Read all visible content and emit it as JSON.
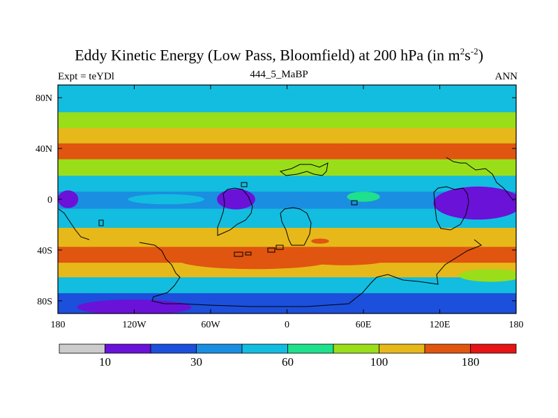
{
  "header": {
    "title_main": "Eddy Kinetic Energy (Low Pass, Bloomfield) at 200 hPa (in m",
    "title_sup1": "2",
    "title_mid": "s",
    "title_sup2": "-2",
    "title_end": ")",
    "expt_label": "Expt = teYDl",
    "run_label": "444_5_MaBP",
    "season_label": "ANN"
  },
  "chart_data": {
    "type": "contour-map",
    "title": "Eddy Kinetic Energy (Low Pass, Bloomfield) at 200 hPa (in m2s-2)",
    "subtitle": "444_5_MaBP",
    "xlabel": "",
    "ylabel": "",
    "xlim": [
      -180,
      180
    ],
    "ylim": [
      -90,
      90
    ],
    "x_ticks": [
      {
        "value": -180,
        "label": "180"
      },
      {
        "value": -120,
        "label": "120W"
      },
      {
        "value": -60,
        "label": "60W"
      },
      {
        "value": 0,
        "label": "0"
      },
      {
        "value": 60,
        "label": "60E"
      },
      {
        "value": 120,
        "label": "120E"
      },
      {
        "value": 180,
        "label": "180"
      }
    ],
    "y_ticks": [
      {
        "value": 80,
        "label": "80N"
      },
      {
        "value": 40,
        "label": "40N"
      },
      {
        "value": 0,
        "label": "0"
      },
      {
        "value": -40,
        "label": "40S"
      },
      {
        "value": -80,
        "label": "80S"
      }
    ],
    "colorbar": {
      "levels": [
        10,
        20,
        30,
        45,
        60,
        80,
        100,
        140,
        180
      ],
      "colors": [
        "#cccccc",
        "#6a12d8",
        "#1c4fdb",
        "#1a8ee0",
        "#12bde0",
        "#1fe08c",
        "#9ade1a",
        "#e6b81a",
        "#e05510",
        "#e61414"
      ],
      "labels": [
        {
          "index": 1,
          "text": "10"
        },
        {
          "index": 3,
          "text": "30"
        },
        {
          "index": 5,
          "text": "60"
        },
        {
          "index": 7,
          "text": "100"
        },
        {
          "index": 9,
          "text": "180"
        }
      ]
    },
    "zonal_mean_profile": [
      {
        "lat": 90,
        "value": 45
      },
      {
        "lat": 75,
        "value": 50
      },
      {
        "lat": 62,
        "value": 80
      },
      {
        "lat": 50,
        "value": 100
      },
      {
        "lat": 38,
        "value": 140
      },
      {
        "lat": 25,
        "value": 80
      },
      {
        "lat": 12,
        "value": 45
      },
      {
        "lat": 0,
        "value": 30
      },
      {
        "lat": -15,
        "value": 50
      },
      {
        "lat": -30,
        "value": 100
      },
      {
        "lat": -45,
        "value": 160
      },
      {
        "lat": -55,
        "value": 110
      },
      {
        "lat": -68,
        "value": 50
      },
      {
        "lat": -80,
        "value": 22
      }
    ],
    "regions": [
      {
        "level_index": 0,
        "lon": 145,
        "lat": -3,
        "rx": 3,
        "ry": 1.5
      },
      {
        "level_index": 8,
        "lon": -135,
        "lat": 38,
        "rx": 28,
        "ry": 3
      },
      {
        "level_index": 8,
        "lon": -35,
        "lat": 38,
        "rx": 22,
        "ry": 3
      },
      {
        "level_index": 8,
        "lon": 40,
        "lat": 37,
        "rx": 12,
        "ry": 2.5
      },
      {
        "level_index": 8,
        "lon": 93,
        "lat": 39,
        "rx": 7,
        "ry": 2
      },
      {
        "level_index": 8,
        "lon": -25,
        "lat": -48,
        "rx": 60,
        "ry": 7
      },
      {
        "level_index": 8,
        "lon": 45,
        "lat": -47,
        "rx": 35,
        "ry": 5
      },
      {
        "level_index": 8,
        "lon": 26,
        "lat": -33,
        "rx": 7,
        "ry": 2
      },
      {
        "level_index": 1,
        "lon": 150,
        "lat": -3,
        "rx": 35,
        "ry": 13
      },
      {
        "level_index": 1,
        "lon": -40,
        "lat": 0,
        "rx": 15,
        "ry": 8
      },
      {
        "level_index": 1,
        "lon": -172,
        "lat": 0,
        "rx": 8,
        "ry": 7
      },
      {
        "level_index": 1,
        "lon": -120,
        "lat": -85,
        "rx": 45,
        "ry": 6
      },
      {
        "level_index": 5,
        "lon": 60,
        "lat": 2,
        "rx": 13,
        "ry": 4
      },
      {
        "level_index": 4,
        "lon": -95,
        "lat": 0,
        "rx": 30,
        "ry": 4
      },
      {
        "level_index": 6,
        "lon": 160,
        "lat": -60,
        "rx": 25,
        "ry": 5
      }
    ]
  }
}
